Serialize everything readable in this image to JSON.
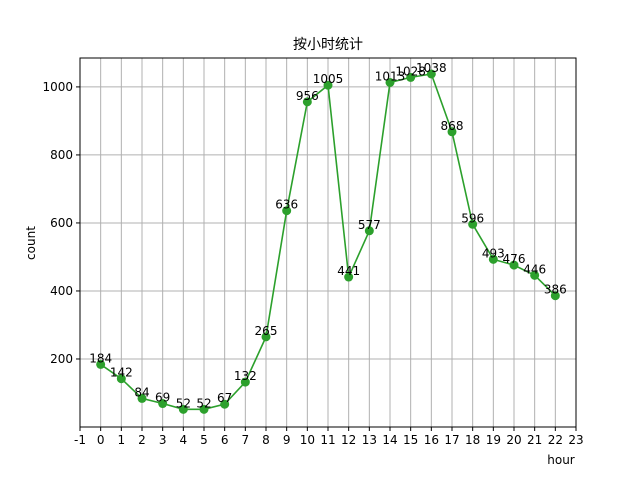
{
  "chart_data": {
    "type": "line",
    "title": "按小时统计",
    "xlabel": "hour",
    "ylabel": "count",
    "x": [
      0,
      1,
      2,
      3,
      4,
      5,
      6,
      7,
      8,
      9,
      10,
      11,
      12,
      13,
      14,
      15,
      16,
      17,
      18,
      19,
      20,
      21,
      22
    ],
    "series": [
      {
        "values": [
          184,
          142,
          84,
          69,
          52,
          52,
          67,
          132,
          265,
          636,
          956,
          1005,
          441,
          577,
          1013,
          1028,
          1038,
          868,
          596,
          493,
          476,
          446,
          386
        ],
        "color": "#2ca02c"
      }
    ],
    "xlim": [
      -1,
      23
    ],
    "ylim": [
      0,
      1085
    ],
    "xticks": [
      -1,
      0,
      1,
      2,
      3,
      4,
      5,
      6,
      7,
      8,
      9,
      10,
      11,
      12,
      13,
      14,
      15,
      16,
      17,
      18,
      19,
      20,
      21,
      22,
      23
    ],
    "yticks": [
      200,
      400,
      600,
      800,
      1000
    ],
    "grid": true,
    "legend": false
  }
}
